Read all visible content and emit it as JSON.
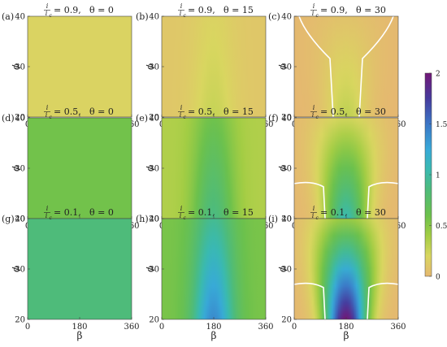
{
  "chart_data": {
    "type": "heatmap",
    "x_label": "β",
    "y_label": "ϕ",
    "x_ticks": [
      "0",
      "180",
      "360"
    ],
    "y_ticks": [
      "20",
      "30",
      "40"
    ],
    "xlim": [
      0,
      360
    ],
    "ylim": [
      20,
      40
    ],
    "colorbar": {
      "ticks": [
        "0",
        "0.5",
        "1",
        "1.5",
        "2"
      ],
      "range": [
        0,
        2
      ]
    },
    "panels": [
      {
        "letter": "(a)",
        "ratio_num": "i",
        "ratio_den": "i",
        "ratio_sub": "c",
        "ratio_value": "0.9",
        "theta_text": "θ = 0",
        "mode": "const",
        "base": 0.18
      },
      {
        "letter": "(b)",
        "ratio_num": "i",
        "ratio_den": "i",
        "ratio_sub": "c",
        "ratio_value": "0.9",
        "theta_text": "θ = 15",
        "mode": "soft",
        "base": 0.1,
        "peak": 0.27
      },
      {
        "letter": "(c)",
        "ratio_num": "i",
        "ratio_den": "i",
        "ratio_sub": "c",
        "ratio_value": "0.9",
        "theta_text": "θ = 30",
        "mode": "strong",
        "base": 0.0,
        "peak": 0.3,
        "contour_top": 0.85
      },
      {
        "letter": "(d)",
        "ratio_num": "i",
        "ratio_den": "i",
        "ratio_sub": "c",
        "ratio_value": "0.5",
        "theta_text": "θ = 0",
        "mode": "const",
        "base": 0.58
      },
      {
        "letter": "(e)",
        "ratio_num": "i",
        "ratio_den": "i",
        "ratio_sub": "c",
        "ratio_value": "0.5",
        "theta_text": "θ = 15",
        "mode": "soft",
        "base": 0.35,
        "peak": 0.88
      },
      {
        "letter": "(f)",
        "ratio_num": "i",
        "ratio_den": "i",
        "ratio_sub": "c",
        "ratio_value": "0.5",
        "theta_text": "θ = 30",
        "mode": "strong",
        "base": 0.0,
        "peak": 1.05,
        "contour_top": 0.38
      },
      {
        "letter": "(g)",
        "ratio_num": "i",
        "ratio_den": "i",
        "ratio_sub": "c",
        "ratio_value": "0.1",
        "theta_text": "θ = 0",
        "mode": "const",
        "base": 0.85
      },
      {
        "letter": "(h)",
        "ratio_num": "i",
        "ratio_den": "i",
        "ratio_sub": "c",
        "ratio_value": "0.1",
        "theta_text": "θ = 15",
        "mode": "soft",
        "base": 0.55,
        "peak": 1.4
      },
      {
        "letter": "(i)",
        "ratio_num": "i",
        "ratio_den": "i",
        "ratio_sub": "c",
        "ratio_value": "0.1",
        "theta_text": "θ = 30",
        "mode": "strong",
        "base": 0.0,
        "peak": 2.0,
        "contour_top": 0.38
      }
    ]
  }
}
